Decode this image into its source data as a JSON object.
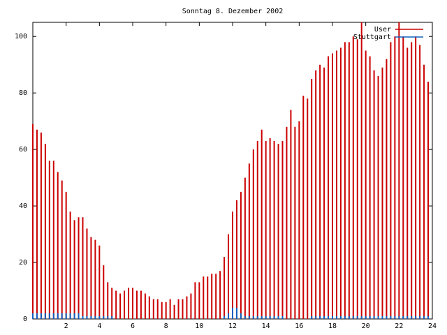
{
  "chart_data": {
    "type": "impulses",
    "title": "Sonntag 8. Dezember 2002",
    "x": [
      0,
      0.25,
      0.5,
      0.75,
      1,
      1.25,
      1.5,
      1.75,
      2,
      2.25,
      2.5,
      2.75,
      3,
      3.25,
      3.5,
      3.75,
      4,
      4.25,
      4.5,
      4.75,
      5,
      5.25,
      5.5,
      5.75,
      6,
      6.25,
      6.5,
      6.75,
      7,
      7.25,
      7.5,
      7.75,
      8,
      8.25,
      8.5,
      8.75,
      9,
      9.25,
      9.5,
      9.75,
      10,
      10.25,
      10.5,
      10.75,
      11,
      11.25,
      11.5,
      11.75,
      12,
      12.25,
      12.5,
      12.75,
      13,
      13.25,
      13.5,
      13.75,
      14,
      14.25,
      14.5,
      14.75,
      15,
      15.25,
      15.5,
      15.75,
      16,
      16.25,
      16.5,
      16.75,
      17,
      17.25,
      17.5,
      17.75,
      18,
      18.25,
      18.5,
      18.75,
      19,
      19.25,
      19.5,
      19.75,
      20,
      20.25,
      20.5,
      20.75,
      21,
      21.25,
      21.5,
      21.75,
      22,
      22.25,
      22.5,
      22.75,
      23,
      23.25,
      23.5,
      23.75
    ],
    "series": [
      {
        "name": "User",
        "color": "#cc0000",
        "values": [
          69,
          67,
          66,
          62,
          56,
          56,
          52,
          49,
          45,
          38,
          35,
          36,
          36,
          32,
          29,
          28,
          26,
          19,
          13,
          11,
          10,
          9,
          10,
          11,
          11,
          10,
          10,
          9,
          8,
          7,
          7,
          6,
          6,
          7,
          5,
          7,
          7,
          8,
          9,
          13,
          13,
          15,
          15,
          16,
          16,
          17,
          22,
          30,
          38,
          42,
          45,
          50,
          55,
          60,
          63,
          67,
          63,
          64,
          63,
          62,
          63,
          68,
          74,
          68,
          70,
          79,
          78,
          85,
          88,
          90,
          89,
          93,
          94,
          95,
          96,
          98,
          98,
          100,
          99,
          105,
          95,
          93,
          88,
          86,
          89,
          92,
          98,
          100,
          105,
          100,
          96,
          98,
          100,
          97,
          90,
          84
        ]
      },
      {
        "name": "Stuttgart",
        "color": "#1060c0",
        "values": [
          2,
          2,
          2,
          2,
          2,
          2,
          2,
          2,
          2,
          2,
          2,
          2,
          1,
          1,
          1,
          1,
          1,
          1,
          1,
          1,
          0,
          0,
          0,
          0,
          0,
          0,
          0,
          0,
          0,
          0,
          0,
          0,
          0,
          0,
          0,
          0,
          0,
          0,
          0,
          0,
          0,
          0,
          0,
          0,
          0,
          0,
          1,
          2,
          4,
          4,
          2,
          1,
          1,
          1,
          1,
          1,
          1,
          1,
          1,
          1,
          1,
          0,
          0,
          0,
          0,
          0,
          0,
          1,
          1,
          1,
          1,
          1,
          1,
          1,
          1,
          1,
          1,
          1,
          1,
          1,
          1,
          1,
          1,
          1,
          1,
          1,
          1,
          1,
          1,
          1,
          1,
          1,
          1,
          1,
          1,
          1
        ]
      }
    ],
    "xlim": [
      0,
      24
    ],
    "ylim": [
      0,
      105
    ],
    "xticks": [
      2,
      4,
      6,
      8,
      10,
      12,
      14,
      16,
      18,
      20,
      22,
      24
    ],
    "yticks": [
      0,
      20,
      40,
      60,
      80,
      100
    ],
    "legend": "top-right"
  }
}
